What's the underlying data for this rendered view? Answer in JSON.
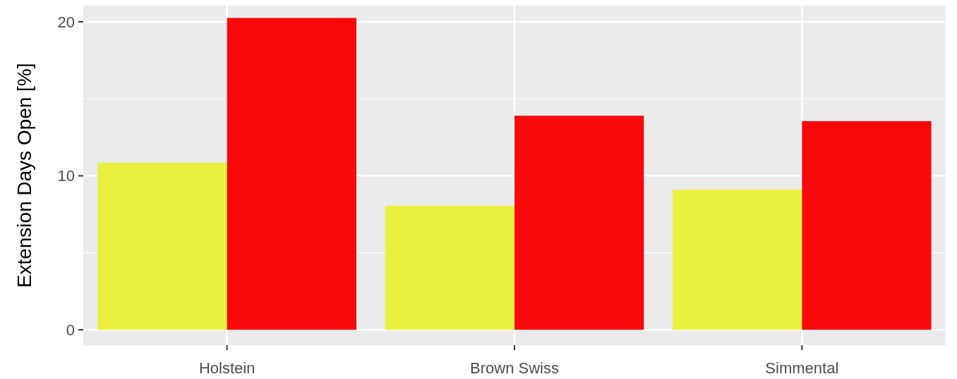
{
  "chart_data": {
    "type": "bar",
    "ylabel": "Extension Days Open [%]",
    "categories": [
      "Holstein",
      "Brown Swiss",
      "Simmental"
    ],
    "series": [
      {
        "color": "#eaf140",
        "values": [
          10.85,
          8.05,
          9.1
        ]
      },
      {
        "color": "#f80a0a",
        "values": [
          20.25,
          13.9,
          13.55
        ]
      }
    ],
    "ylim": [
      -1,
      21.05
    ],
    "yticks": [
      0,
      {
        "value": 5,
        "label": null
      },
      10,
      {
        "value": 15,
        "label": null
      },
      20
    ],
    "grid": true
  }
}
